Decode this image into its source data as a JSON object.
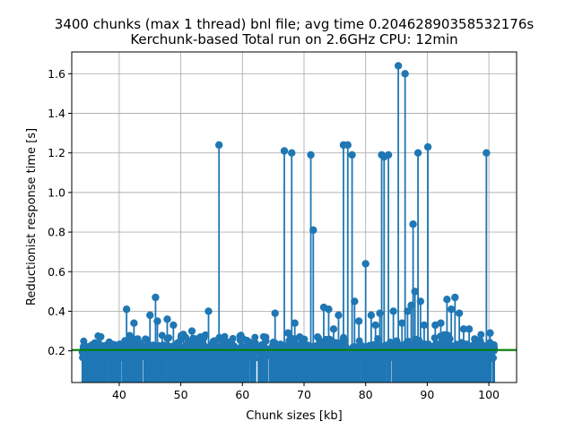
{
  "chart_data": {
    "type": "scatter",
    "title": "3400 chunks (max 1 thread) bnl file; avg time 0.20462890358532176s",
    "subtitle": "Kerchunk-based Total run on 2.6GHz CPU: 12min",
    "xlabel": "Chunk sizes [kb]",
    "ylabel": "Reductionist response time [s]",
    "xlim": [
      32.3,
      104.5
    ],
    "ylim": [
      0.04,
      1.71
    ],
    "xticks": [
      40,
      50,
      60,
      70,
      80,
      90,
      100
    ],
    "yticks": [
      0.2,
      0.4,
      0.6,
      0.8,
      1.0,
      1.2,
      1.4,
      1.6
    ],
    "ytick_labels": [
      "0.2",
      "0.4",
      "0.6",
      "0.8",
      "1.0",
      "1.2",
      "1.4",
      "1.6"
    ],
    "grid": true,
    "stem_baseline": 0,
    "avg_line": {
      "y": 0.20462890358532176,
      "color": "#008000"
    },
    "marker_color": "#1f77b4",
    "points": [
      [
        34.2,
        0.21
      ],
      [
        35.6,
        0.23
      ],
      [
        36.8,
        0.2
      ],
      [
        38.5,
        0.24
      ],
      [
        39.6,
        0.22
      ],
      [
        41.2,
        0.41
      ],
      [
        41.9,
        0.21
      ],
      [
        42.4,
        0.34
      ],
      [
        43.0,
        0.26
      ],
      [
        44.3,
        0.22
      ],
      [
        45.0,
        0.38
      ],
      [
        45.9,
        0.47
      ],
      [
        46.2,
        0.35
      ],
      [
        46.9,
        0.22
      ],
      [
        47.8,
        0.36
      ],
      [
        48.8,
        0.33
      ],
      [
        49.5,
        0.24
      ],
      [
        51.1,
        0.23
      ],
      [
        51.8,
        0.3
      ],
      [
        52.5,
        0.26
      ],
      [
        53.2,
        0.27
      ],
      [
        54.5,
        0.4
      ],
      [
        55.5,
        0.25
      ],
      [
        56.2,
        1.24
      ],
      [
        57.0,
        0.22
      ],
      [
        58.2,
        0.24
      ],
      [
        59.6,
        0.21
      ],
      [
        60.1,
        0.26
      ],
      [
        61.3,
        0.24
      ],
      [
        62.6,
        0.22
      ],
      [
        63.8,
        0.25
      ],
      [
        65.3,
        0.39
      ],
      [
        66.1,
        0.22
      ],
      [
        66.8,
        1.21
      ],
      [
        67.4,
        0.29
      ],
      [
        68.0,
        1.2
      ],
      [
        68.5,
        0.34
      ],
      [
        69.3,
        0.27
      ],
      [
        70.1,
        0.23
      ],
      [
        71.1,
        1.19
      ],
      [
        71.5,
        0.81
      ],
      [
        72.2,
        0.27
      ],
      [
        73.2,
        0.42
      ],
      [
        74.0,
        0.41
      ],
      [
        74.8,
        0.31
      ],
      [
        75.6,
        0.38
      ],
      [
        76.4,
        1.24
      ],
      [
        77.1,
        1.24
      ],
      [
        77.8,
        1.19
      ],
      [
        78.2,
        0.45
      ],
      [
        78.9,
        0.35
      ],
      [
        80.0,
        0.64
      ],
      [
        80.9,
        0.38
      ],
      [
        81.6,
        0.33
      ],
      [
        82.3,
        0.39
      ],
      [
        82.6,
        1.19
      ],
      [
        83.0,
        1.18
      ],
      [
        83.7,
        1.19
      ],
      [
        84.5,
        0.4
      ],
      [
        85.3,
        1.64
      ],
      [
        85.9,
        0.34
      ],
      [
        86.4,
        1.6
      ],
      [
        86.8,
        0.4
      ],
      [
        87.4,
        0.43
      ],
      [
        87.7,
        0.84
      ],
      [
        88.0,
        0.5
      ],
      [
        88.5,
        1.2
      ],
      [
        88.9,
        0.45
      ],
      [
        89.5,
        0.33
      ],
      [
        90.1,
        1.23
      ],
      [
        90.7,
        0.22
      ],
      [
        91.3,
        0.33
      ],
      [
        92.2,
        0.34
      ],
      [
        93.2,
        0.46
      ],
      [
        93.9,
        0.41
      ],
      [
        94.5,
        0.47
      ],
      [
        95.2,
        0.39
      ],
      [
        95.9,
        0.31
      ],
      [
        96.8,
        0.31
      ],
      [
        97.7,
        0.26
      ],
      [
        98.6,
        0.25
      ],
      [
        99.6,
        1.2
      ],
      [
        100.2,
        0.29
      ],
      [
        100.8,
        0.23
      ]
    ]
  }
}
